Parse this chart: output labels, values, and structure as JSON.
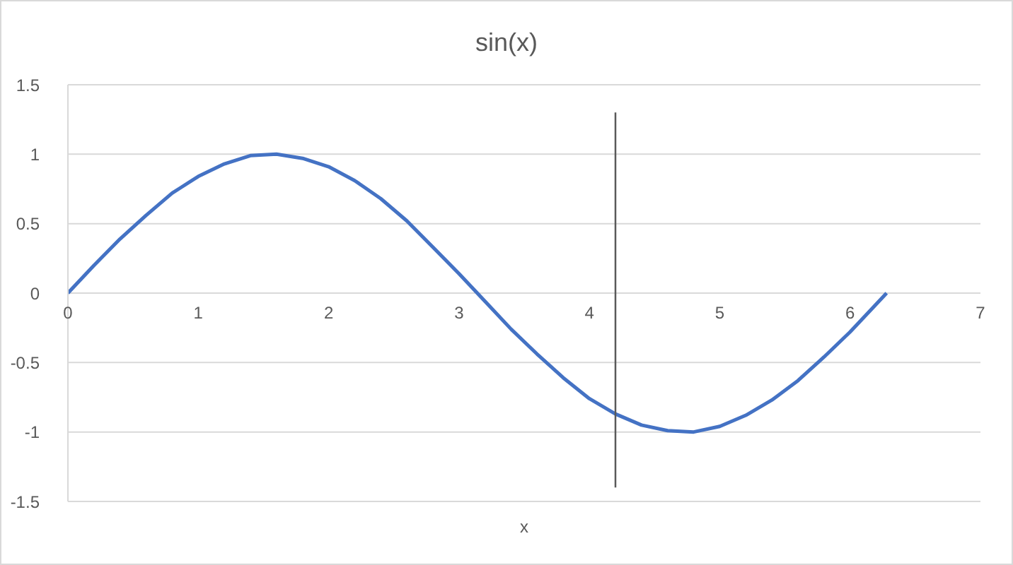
{
  "chart_data": {
    "type": "line",
    "title": "sin(x)",
    "xlabel": "x",
    "xlim": [
      0,
      7
    ],
    "xticks": [
      0,
      1,
      2,
      3,
      4,
      5,
      6,
      7
    ],
    "ylim": [
      -1.5,
      1.5
    ],
    "yticks": [
      -1.5,
      -1,
      -0.5,
      0,
      0.5,
      1,
      1.5
    ],
    "grid": "y",
    "marker": "none",
    "series": [
      {
        "color": "#4472c4",
        "x": [
          0,
          0.2,
          0.4,
          0.6,
          0.8,
          1.0,
          1.2,
          1.4,
          1.6,
          1.8,
          2.0,
          2.2,
          2.4,
          2.6,
          2.8,
          3.0,
          3.2,
          3.4,
          3.6,
          3.8,
          4.0,
          4.2,
          4.4,
          4.6,
          4.8,
          5.0,
          5.2,
          5.4,
          5.6,
          5.8,
          6.0,
          6.2,
          6.28
        ],
        "values": [
          0,
          0.2,
          0.39,
          0.56,
          0.72,
          0.84,
          0.93,
          0.99,
          1.0,
          0.97,
          0.91,
          0.81,
          0.68,
          0.52,
          0.33,
          0.14,
          -0.06,
          -0.26,
          -0.44,
          -0.61,
          -0.76,
          -0.87,
          -0.95,
          -0.99,
          -1.0,
          -0.96,
          -0.88,
          -0.77,
          -0.63,
          -0.46,
          -0.28,
          -0.08,
          0
        ]
      },
      {
        "color": "#595959",
        "x": [
          4.2,
          4.2
        ],
        "values": [
          1.3,
          -1.4
        ]
      }
    ]
  }
}
